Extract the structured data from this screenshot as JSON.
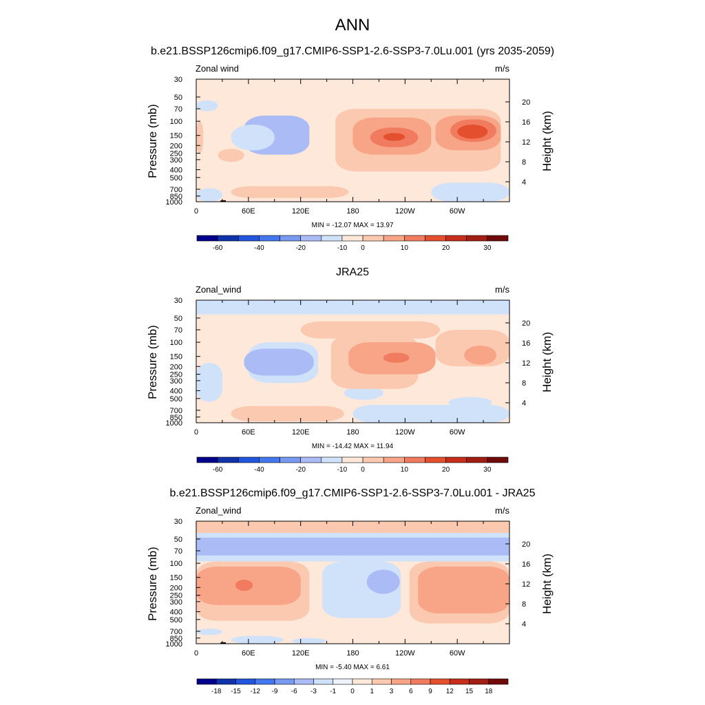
{
  "page": {
    "title": "ANN",
    "colors": {
      "accent": "#ee5533",
      "background": "#ffffff",
      "land_mask": "#000000"
    }
  },
  "chart_data": [
    {
      "type": "heatmap",
      "title": "b.e21.BSSP126cmip6.f09_g17.CMIP6-SSP1-2.6-SSP3-7.0Lu.001 (yrs 2035-2059)",
      "left_label": "Zonal wind",
      "units_label": "m/s",
      "ylabel": "Pressure (mb)",
      "ylabel_right": "Height (km)",
      "x_ticks": [
        "0",
        "60E",
        "120E",
        "180",
        "120W",
        "60W"
      ],
      "x_tick_lon": [
        0,
        60,
        120,
        180,
        240,
        300
      ],
      "xlim": [
        0,
        360
      ],
      "y_ticks": [
        "30",
        "50",
        "70",
        "100",
        "150",
        "200",
        "250",
        "300",
        "400",
        "500",
        "700",
        "850",
        "1000"
      ],
      "y_tick_values": [
        30,
        50,
        70,
        100,
        150,
        200,
        250,
        300,
        400,
        500,
        700,
        850,
        1000
      ],
      "ylim": [
        1000,
        30
      ],
      "y_scale": "log",
      "height_ticks": [
        "4",
        "8",
        "12",
        "16",
        "20"
      ],
      "height_tick_km": [
        4,
        8,
        12,
        16,
        20
      ],
      "stats": "MIN = -12.07  MAX =  13.97",
      "min": -12.07,
      "max": 13.97,
      "colorbar": {
        "labels": [
          "-60",
          "-40",
          "-20",
          "-10",
          "0",
          "10",
          "20",
          "30"
        ],
        "colors": [
          "#00008a",
          "#1133aa",
          "#2255dd",
          "#4477ee",
          "#7799f0",
          "#aabbf5",
          "#d0e2fa",
          "#fde8da",
          "#fbc9b0",
          "#f7a487",
          "#f07b5e",
          "#e4502e",
          "#c62d1a",
          "#a01e14",
          "#700b0b"
        ]
      },
      "regions": [
        {
          "level": 7,
          "lon": [
            0,
            360
          ],
          "p": [
            30,
            1000
          ],
          "note": "background 0 to 5"
        },
        {
          "level": 6,
          "lon": [
            0,
            25
          ],
          "p": [
            55,
            75
          ]
        },
        {
          "level": 5,
          "lon": [
            55,
            130
          ],
          "p": [
            85,
            260
          ]
        },
        {
          "level": 6,
          "lon": [
            40,
            90
          ],
          "p": [
            110,
            230
          ]
        },
        {
          "level": 8,
          "lon": [
            0,
            8
          ],
          "p": [
            100,
            250
          ]
        },
        {
          "level": 8,
          "lon": [
            25,
            55
          ],
          "p": [
            220,
            320
          ]
        },
        {
          "level": 8,
          "lon": [
            160,
            350
          ],
          "p": [
            70,
            420
          ]
        },
        {
          "level": 9,
          "lon": [
            180,
            270
          ],
          "p": [
            90,
            260
          ]
        },
        {
          "level": 9,
          "lon": [
            275,
            350
          ],
          "p": [
            85,
            230
          ]
        },
        {
          "level": 10,
          "lon": [
            200,
            255
          ],
          "p": [
            120,
            210
          ]
        },
        {
          "level": 10,
          "lon": [
            292,
            345
          ],
          "p": [
            95,
            180
          ]
        },
        {
          "level": 11,
          "lon": [
            300,
            335
          ],
          "p": [
            110,
            165
          ]
        },
        {
          "level": 11,
          "lon": [
            215,
            240
          ],
          "p": [
            140,
            175
          ]
        },
        {
          "level": 8,
          "lon": [
            40,
            175
          ],
          "p": [
            640,
            900
          ]
        },
        {
          "level": 6,
          "lon": [
            0,
            30
          ],
          "p": [
            680,
            1000
          ]
        },
        {
          "level": 6,
          "lon": [
            270,
            360
          ],
          "p": [
            580,
            1000
          ]
        }
      ],
      "land": [
        {
          "lon": [
            9,
            40
          ],
          "p": [
            960,
            1000
          ]
        },
        {
          "lon": [
            28,
            34
          ],
          "p": [
            900,
            960
          ]
        },
        {
          "lon": [
            100,
            104
          ],
          "p": [
            950,
            1000
          ]
        },
        {
          "lon": [
            113,
            116
          ],
          "p": [
            960,
            1000
          ]
        },
        {
          "lon": [
            282,
            310
          ],
          "p": [
            960,
            1000
          ]
        }
      ]
    },
    {
      "type": "heatmap",
      "title": "JRA25",
      "left_label": "Zonal_wind",
      "units_label": "m/s",
      "ylabel": "Pressure (mb)",
      "ylabel_right": "Height (km)",
      "x_ticks": [
        "0",
        "60E",
        "120E",
        "180",
        "120W",
        "60W"
      ],
      "x_tick_lon": [
        0,
        60,
        120,
        180,
        240,
        300
      ],
      "xlim": [
        0,
        360
      ],
      "y_ticks": [
        "30",
        "50",
        "70",
        "100",
        "150",
        "200",
        "250",
        "300",
        "400",
        "500",
        "700",
        "850",
        "1000"
      ],
      "y_tick_values": [
        30,
        50,
        70,
        100,
        150,
        200,
        250,
        300,
        400,
        500,
        700,
        850,
        1000
      ],
      "ylim": [
        1000,
        30
      ],
      "y_scale": "log",
      "height_ticks": [
        "4",
        "8",
        "12",
        "16",
        "20"
      ],
      "height_tick_km": [
        4,
        8,
        12,
        16,
        20
      ],
      "stats": "MIN = -14.42  MAX =  11.94",
      "min": -14.42,
      "max": 11.94,
      "colorbar": {
        "labels": [
          "-60",
          "-40",
          "-20",
          "-10",
          "0",
          "10",
          "20",
          "30"
        ],
        "colors": [
          "#00008a",
          "#1133aa",
          "#2255dd",
          "#4477ee",
          "#7799f0",
          "#aabbf5",
          "#d0e2fa",
          "#fde8da",
          "#fbc9b0",
          "#f7a487",
          "#f07b5e",
          "#e4502e",
          "#c62d1a",
          "#a01e14",
          "#700b0b"
        ]
      },
      "regions": [
        {
          "level": 7,
          "lon": [
            0,
            360
          ],
          "p": [
            30,
            1000
          ]
        },
        {
          "level": 6,
          "lon": [
            0,
            360
          ],
          "p": [
            30,
            45
          ]
        },
        {
          "level": 6,
          "lon": [
            60,
            140
          ],
          "p": [
            100,
            320
          ]
        },
        {
          "level": 5,
          "lon": [
            55,
            135
          ],
          "p": [
            120,
            260
          ]
        },
        {
          "level": 6,
          "lon": [
            0,
            30
          ],
          "p": [
            180,
            550
          ]
        },
        {
          "level": 6,
          "lon": [
            170,
            215
          ],
          "p": [
            350,
            520
          ]
        },
        {
          "level": 6,
          "lon": [
            180,
            360
          ],
          "p": [
            600,
            1000
          ]
        },
        {
          "level": 6,
          "lon": [
            290,
            340
          ],
          "p": [
            480,
            650
          ]
        },
        {
          "level": 8,
          "lon": [
            120,
            280
          ],
          "p": [
            55,
            90
          ]
        },
        {
          "level": 8,
          "lon": [
            155,
            255
          ],
          "p": [
            80,
            380
          ]
        },
        {
          "level": 8,
          "lon": [
            275,
            360
          ],
          "p": [
            70,
            200
          ]
        },
        {
          "level": 9,
          "lon": [
            175,
            275
          ],
          "p": [
            100,
            250
          ]
        },
        {
          "level": 9,
          "lon": [
            308,
            345
          ],
          "p": [
            110,
            190
          ]
        },
        {
          "level": 10,
          "lon": [
            215,
            245
          ],
          "p": [
            135,
            180
          ]
        },
        {
          "level": 8,
          "lon": [
            40,
            170
          ],
          "p": [
            620,
            960
          ]
        }
      ],
      "land": []
    },
    {
      "type": "heatmap",
      "title": "b.e21.BSSP126cmip6.f09_g17.CMIP6-SSP1-2.6-SSP3-7.0Lu.001 - JRA25",
      "left_label": "Zonal_wind",
      "units_label": "m/s",
      "ylabel": "Pressure (mb)",
      "ylabel_right": "Height (km)",
      "x_ticks": [
        "0",
        "60E",
        "120E",
        "180",
        "120W",
        "60W"
      ],
      "x_tick_lon": [
        0,
        60,
        120,
        180,
        240,
        300
      ],
      "xlim": [
        0,
        360
      ],
      "y_ticks": [
        "30",
        "50",
        "70",
        "100",
        "150",
        "200",
        "250",
        "300",
        "400",
        "500",
        "700",
        "850",
        "1000"
      ],
      "y_tick_values": [
        30,
        50,
        70,
        100,
        150,
        200,
        250,
        300,
        400,
        500,
        700,
        850,
        1000
      ],
      "ylim": [
        1000,
        30
      ],
      "y_scale": "log",
      "height_ticks": [
        "4",
        "8",
        "12",
        "16",
        "20"
      ],
      "height_tick_km": [
        4,
        8,
        12,
        16,
        20
      ],
      "stats": "MIN =  -5.40  MAX =   6.61",
      "min": -5.4,
      "max": 6.61,
      "colorbar": {
        "labels": [
          "-18",
          "-15",
          "-12",
          "-9",
          "-6",
          "-3",
          "-1",
          "0",
          "1",
          "3",
          "6",
          "9",
          "12",
          "15",
          "18"
        ],
        "colors": [
          "#00008a",
          "#1133aa",
          "#2255dd",
          "#4477ee",
          "#7799f0",
          "#aabbf5",
          "#d0e2fa",
          "#eef2fb",
          "#fde8da",
          "#fbc9b0",
          "#f7a487",
          "#f07b5e",
          "#e4502e",
          "#c62d1a",
          "#a01e14",
          "#700b0b"
        ]
      },
      "regions": [
        {
          "level": 8,
          "lon": [
            0,
            360
          ],
          "p": [
            30,
            1000
          ]
        },
        {
          "level": 9,
          "lon": [
            0,
            360
          ],
          "p": [
            30,
            42
          ]
        },
        {
          "level": 6,
          "lon": [
            0,
            360
          ],
          "p": [
            42,
            95
          ]
        },
        {
          "level": 5,
          "lon": [
            0,
            360
          ],
          "p": [
            48,
            80
          ]
        },
        {
          "level": 9,
          "lon": [
            0,
            130
          ],
          "p": [
            95,
            520
          ]
        },
        {
          "level": 10,
          "lon": [
            0,
            120
          ],
          "p": [
            110,
            330
          ]
        },
        {
          "level": 11,
          "lon": [
            45,
            65
          ],
          "p": [
            160,
            220
          ]
        },
        {
          "level": 9,
          "lon": [
            245,
            360
          ],
          "p": [
            95,
            560
          ]
        },
        {
          "level": 10,
          "lon": [
            255,
            360
          ],
          "p": [
            110,
            420
          ]
        },
        {
          "level": 6,
          "lon": [
            145,
            235
          ],
          "p": [
            95,
            480
          ]
        },
        {
          "level": 5,
          "lon": [
            196,
            234
          ],
          "p": [
            120,
            240
          ]
        },
        {
          "level": 8,
          "lon": [
            150,
            200
          ],
          "p": [
            520,
            1000
          ]
        },
        {
          "level": 6,
          "lon": [
            0,
            30
          ],
          "p": [
            650,
            780
          ]
        },
        {
          "level": 6,
          "lon": [
            40,
            100
          ],
          "p": [
            800,
            1000
          ]
        },
        {
          "level": 6,
          "lon": [
            110,
            150
          ],
          "p": [
            850,
            1000
          ]
        }
      ],
      "land": [
        {
          "lon": [
            9,
            40
          ],
          "p": [
            960,
            1000
          ]
        },
        {
          "lon": [
            28,
            34
          ],
          "p": [
            900,
            960
          ]
        },
        {
          "lon": [
            100,
            104
          ],
          "p": [
            950,
            1000
          ]
        },
        {
          "lon": [
            113,
            116
          ],
          "p": [
            960,
            1000
          ]
        },
        {
          "lon": [
            282,
            310
          ],
          "p": [
            960,
            1000
          ]
        }
      ]
    }
  ]
}
